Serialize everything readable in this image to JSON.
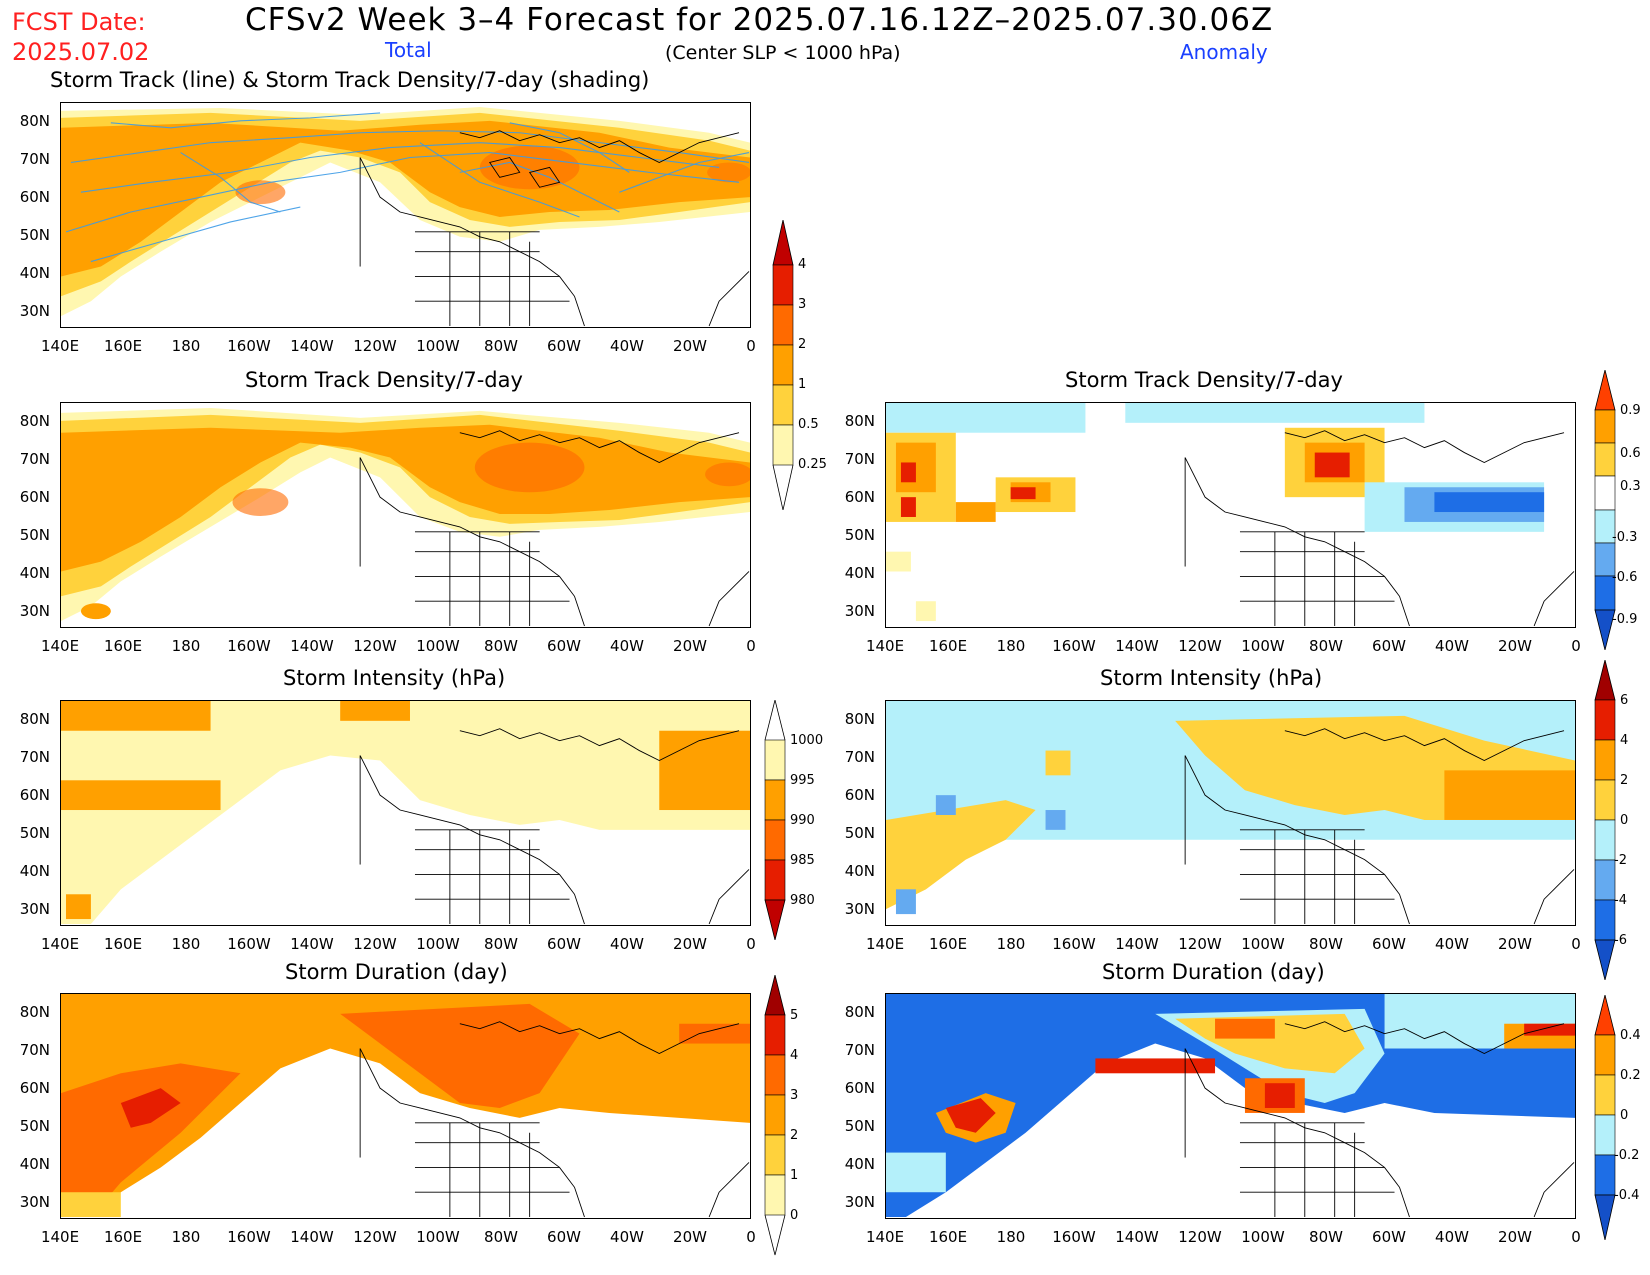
{
  "header": {
    "fcst_label": "FCST Date:",
    "fcst_date": "2025.07.02",
    "title": "CFSv2 Week 3–4 Forecast for 2025.07.16.12Z–2025.07.30.06Z",
    "total_label": "Total",
    "anomaly_label": "Anomaly",
    "subtitle": "(Center SLP < 1000 hPa)"
  },
  "axes": {
    "lat_labels": [
      "80N",
      "70N",
      "60N",
      "50N",
      "40N",
      "30N"
    ],
    "lon_labels": [
      "140E",
      "160E",
      "180",
      "160W",
      "140W",
      "120W",
      "100W",
      "80W",
      "60W",
      "40W",
      "20W",
      "0"
    ]
  },
  "panels": {
    "track_total": {
      "title": "Storm Track (line) & Storm Track Density/7-day (shading)"
    },
    "density_total": {
      "title": "Storm Track Density/7-day"
    },
    "density_anom": {
      "title": "Storm Track Density/7-day"
    },
    "intensity_total": {
      "title": "Storm Intensity (hPa)"
    },
    "intensity_anom": {
      "title": "Storm Intensity (hPa)"
    },
    "duration_total": {
      "title": "Storm Duration (day)"
    },
    "duration_anom": {
      "title": "Storm Duration (day)"
    }
  },
  "colorbars": {
    "density_total": [
      "4",
      "3",
      "2",
      "1",
      "0.5",
      "0.25"
    ],
    "density_anom": [
      "0.9",
      "0.6",
      "0.3",
      "-0.3",
      "-0.6",
      "-0.9"
    ],
    "intensity_total": [
      "1000",
      "995",
      "990",
      "985",
      "980"
    ],
    "intensity_anom": [
      "6",
      "4",
      "2",
      "0",
      "-2",
      "-4",
      "-6"
    ],
    "duration_total": [
      "5",
      "4",
      "3",
      "2",
      "1",
      "0"
    ],
    "duration_anom": [
      "0.4",
      "0.2",
      "0",
      "-0.2",
      "-0.4"
    ]
  },
  "colors": {
    "pale_yellow": "#fff7b0",
    "light_orange": "#ffd23c",
    "orange": "#ffa000",
    "dark_orange": "#ff6a00",
    "red": "#e61e00",
    "dark_red": "#a00000",
    "light_blue": "#b4f0fa",
    "mid_blue": "#64aaf0",
    "blue": "#1e6ee6",
    "dark_blue": "#1450c8",
    "track_line": "#3c9be6"
  }
}
